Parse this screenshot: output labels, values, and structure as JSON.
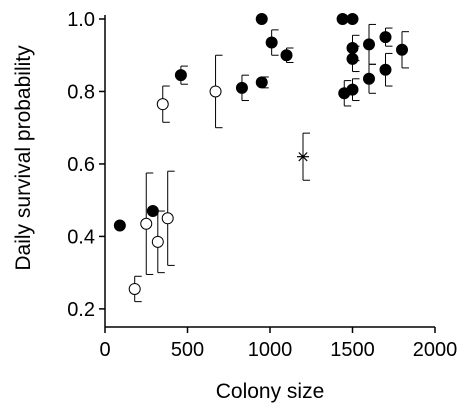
{
  "chart_data": {
    "type": "scatter",
    "title": "",
    "xlabel": "Colony size",
    "ylabel": "Daily survival probability",
    "xlim": [
      0,
      2000
    ],
    "ylim": [
      0.15,
      1.0
    ],
    "xticks": [
      "0",
      "500",
      "1000",
      "1500",
      "2000"
    ],
    "yticks": [
      "0.2",
      "0.4",
      "0.6",
      "0.8",
      "1.0"
    ],
    "grid": false,
    "legend": "none",
    "series": [
      {
        "marker": "filled-circle",
        "color": "#000000",
        "points": [
          {
            "x": 90,
            "y": 0.43
          },
          {
            "x": 290,
            "y": 0.47
          },
          {
            "x": 460,
            "y": 0.845,
            "err": 0.025
          },
          {
            "x": 830,
            "y": 0.81,
            "err": 0.035
          },
          {
            "x": 950,
            "y": 1.0
          },
          {
            "x": 950,
            "y": 0.825,
            "err": 0.015
          },
          {
            "x": 1010,
            "y": 0.935,
            "err": 0.035
          },
          {
            "x": 1100,
            "y": 0.9,
            "err": 0.02
          },
          {
            "x": 1440,
            "y": 1.0
          },
          {
            "x": 1450,
            "y": 0.795,
            "err": 0.035
          },
          {
            "x": 1500,
            "y": 1.0
          },
          {
            "x": 1500,
            "y": 0.92,
            "err": 0.035
          },
          {
            "x": 1500,
            "y": 0.89,
            "err": 0.035
          },
          {
            "x": 1500,
            "y": 0.805,
            "err": 0.03
          },
          {
            "x": 1600,
            "y": 0.93,
            "err": 0.055
          },
          {
            "x": 1600,
            "y": 0.835,
            "err": 0.04
          },
          {
            "x": 1700,
            "y": 0.95,
            "err": 0.025
          },
          {
            "x": 1700,
            "y": 0.86,
            "err": 0.045
          },
          {
            "x": 1800,
            "y": 0.915,
            "err": 0.05
          }
        ]
      },
      {
        "marker": "open-circle",
        "color": "#000000",
        "points": [
          {
            "x": 180,
            "y": 0.255,
            "err": 0.035
          },
          {
            "x": 250,
            "y": 0.435,
            "err": 0.14
          },
          {
            "x": 320,
            "y": 0.385,
            "err": 0.085
          },
          {
            "x": 350,
            "y": 0.765,
            "err": 0.05
          },
          {
            "x": 380,
            "y": 0.45,
            "err": 0.13
          },
          {
            "x": 670,
            "y": 0.8,
            "err": 0.1
          }
        ]
      },
      {
        "marker": "asterisk",
        "color": "#000000",
        "points": [
          {
            "x": 1200,
            "y": 0.62,
            "err": 0.065
          }
        ]
      }
    ]
  }
}
